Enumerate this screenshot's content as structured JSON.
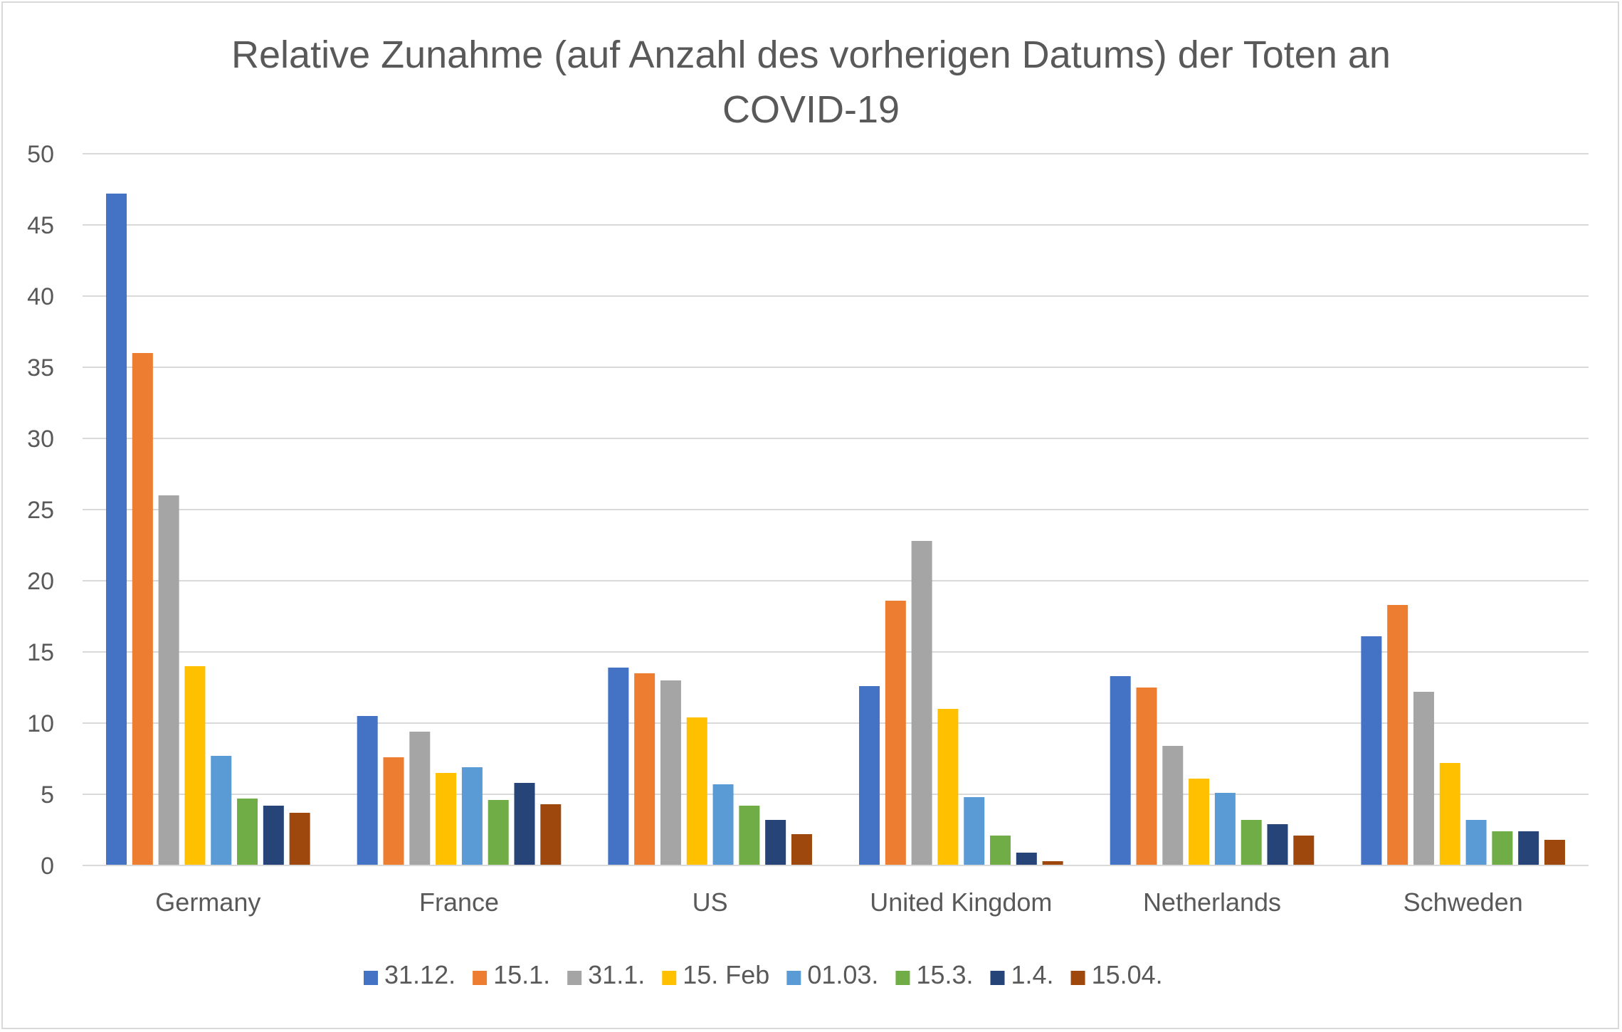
{
  "chart_data": {
    "type": "bar",
    "title": "Relative Zunahme (auf Anzahl des vorherigen Datums) der Toten an COVID-19",
    "title_lines": [
      "Relative Zunahme (auf Anzahl des vorherigen Datums) der Toten an",
      "COVID-19"
    ],
    "categories": [
      "Germany",
      "France",
      "US",
      "United Kingdom",
      "Netherlands",
      "Schweden"
    ],
    "ylim": [
      0,
      50
    ],
    "yticks": [
      0,
      5,
      10,
      15,
      20,
      25,
      30,
      35,
      40,
      45,
      50
    ],
    "grid": true,
    "legend_position": "bottom",
    "series": [
      {
        "name": "31.12.",
        "color": "#4472c4",
        "values": [
          47.2,
          10.5,
          13.9,
          12.6,
          13.3,
          16.1
        ]
      },
      {
        "name": "15.1.",
        "color": "#ed7d31",
        "values": [
          36.0,
          7.6,
          13.5,
          18.6,
          12.5,
          18.3
        ]
      },
      {
        "name": "31.1.",
        "color": "#a5a5a5",
        "values": [
          26.0,
          9.4,
          13.0,
          22.8,
          8.4,
          12.2
        ]
      },
      {
        "name": "15. Feb",
        "color": "#ffc000",
        "values": [
          14.0,
          6.5,
          10.4,
          11.0,
          6.1,
          7.2
        ]
      },
      {
        "name": "01.03.",
        "color": "#5b9bd5",
        "values": [
          7.7,
          6.9,
          5.7,
          4.8,
          5.1,
          3.2
        ]
      },
      {
        "name": "15.3.",
        "color": "#70ad47",
        "values": [
          4.7,
          4.6,
          4.2,
          2.1,
          3.2,
          2.4
        ]
      },
      {
        "name": "1.4.",
        "color": "#264478",
        "values": [
          4.2,
          5.8,
          3.2,
          0.9,
          2.9,
          2.4
        ]
      },
      {
        "name": "15.04.",
        "color": "#9e480e",
        "values": [
          3.7,
          4.3,
          2.2,
          0.3,
          2.1,
          1.8
        ]
      }
    ]
  }
}
